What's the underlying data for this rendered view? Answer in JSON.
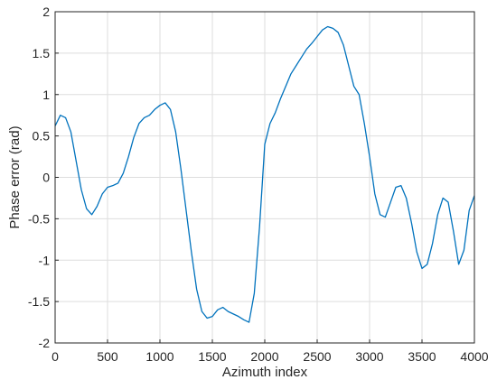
{
  "chart_data": {
    "type": "line",
    "title": "",
    "xlabel": "Azimuth index",
    "ylabel": "Phase error (rad)",
    "xlim": [
      0,
      4000
    ],
    "ylim": [
      -2,
      2
    ],
    "xticks": [
      0,
      500,
      1000,
      1500,
      2000,
      2500,
      3000,
      3500,
      4000
    ],
    "yticks": [
      -2,
      -1.5,
      -1,
      -0.5,
      0,
      0.5,
      1,
      1.5,
      2
    ],
    "xtick_labels": [
      "0",
      "500",
      "1000",
      "1500",
      "2000",
      "2500",
      "3000",
      "3500",
      "4000"
    ],
    "ytick_labels": [
      "-2",
      "-1.5",
      "-1",
      "-0.5",
      "0",
      "0.5",
      "1",
      "1.5",
      "2"
    ],
    "grid": true,
    "legend": "none",
    "series_color": "#0072BD",
    "series": [
      {
        "x": [
          0,
          50,
          100,
          150,
          200,
          250,
          300,
          350,
          400,
          450,
          500,
          550,
          600,
          650,
          700,
          750,
          800,
          850,
          900,
          950,
          1000,
          1050,
          1100,
          1150,
          1200,
          1250,
          1300,
          1350,
          1400,
          1450,
          1500,
          1550,
          1600,
          1650,
          1700,
          1750,
          1800,
          1850,
          1900,
          1950,
          2000,
          2050,
          2100,
          2150,
          2200,
          2250,
          2300,
          2350,
          2400,
          2450,
          2500,
          2550,
          2600,
          2650,
          2700,
          2750,
          2800,
          2850,
          2900,
          2950,
          3000,
          3050,
          3100,
          3150,
          3200,
          3250,
          3300,
          3350,
          3400,
          3450,
          3500,
          3550,
          3600,
          3650,
          3700,
          3750,
          3800,
          3850,
          3900,
          3950,
          4000
        ],
        "y": [
          0.62,
          0.75,
          0.72,
          0.55,
          0.2,
          -0.15,
          -0.38,
          -0.45,
          -0.35,
          -0.2,
          -0.12,
          -0.1,
          -0.07,
          0.05,
          0.25,
          0.48,
          0.65,
          0.72,
          0.75,
          0.82,
          0.87,
          0.9,
          0.82,
          0.55,
          0.1,
          -0.4,
          -0.9,
          -1.35,
          -1.62,
          -1.7,
          -1.68,
          -1.6,
          -1.57,
          -1.62,
          -1.65,
          -1.68,
          -1.72,
          -1.75,
          -1.4,
          -0.6,
          0.4,
          0.65,
          0.78,
          0.95,
          1.1,
          1.25,
          1.35,
          1.45,
          1.55,
          1.62,
          1.7,
          1.78,
          1.82,
          1.8,
          1.75,
          1.6,
          1.35,
          1.1,
          1.0,
          0.65,
          0.25,
          -0.2,
          -0.45,
          -0.48,
          -0.3,
          -0.12,
          -0.1,
          -0.25,
          -0.55,
          -0.9,
          -1.1,
          -1.05,
          -0.8,
          -0.45,
          -0.25,
          -0.3,
          -0.65,
          -1.05,
          -0.88,
          -0.4,
          -0.22
        ]
      }
    ]
  }
}
